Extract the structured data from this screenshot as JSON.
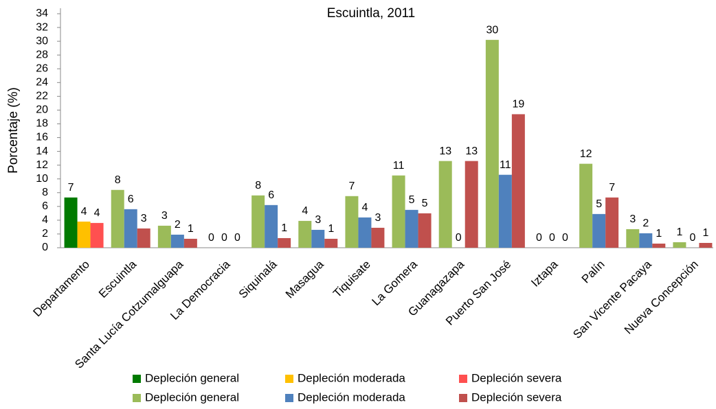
{
  "chart_data": {
    "type": "bar",
    "title": "Escuintla, 2011",
    "y_label": "Porcentaje (%)",
    "categories": [
      "Departamento",
      "Escuintla",
      "Santa Lucía Cotzumalguapa",
      "La Democracia",
      "Siquinalá",
      "Masagua",
      "Tiquisate",
      "La Gomera",
      "Guanagazapa",
      "Puerto San José",
      "Iztapa",
      "Palín",
      "San Vicente Pacaya",
      "Nueva Concepción"
    ],
    "series": [
      {
        "name": "Depleción general",
        "color": "#007a00",
        "values": [
          7.3,
          null,
          null,
          null,
          null,
          null,
          null,
          null,
          null,
          null,
          null,
          null,
          null,
          null
        ],
        "value_labels": [
          "7",
          null,
          null,
          null,
          null,
          null,
          null,
          null,
          null,
          null,
          null,
          null,
          null,
          null
        ]
      },
      {
        "name": "Depleción moderada",
        "color": "#ffc000",
        "values": [
          3.8,
          null,
          null,
          null,
          null,
          null,
          null,
          null,
          null,
          null,
          null,
          null,
          null,
          null
        ],
        "value_labels": [
          "4",
          null,
          null,
          null,
          null,
          null,
          null,
          null,
          null,
          null,
          null,
          null,
          null,
          null
        ]
      },
      {
        "name": "Depleción severa",
        "color": "#ff5050",
        "values": [
          3.6,
          null,
          null,
          null,
          null,
          null,
          null,
          null,
          null,
          null,
          null,
          null,
          null,
          null
        ],
        "value_labels": [
          "4",
          null,
          null,
          null,
          null,
          null,
          null,
          null,
          null,
          null,
          null,
          null,
          null,
          null
        ]
      },
      {
        "name": "Depleción general",
        "color": "#9bbb59",
        "values": [
          null,
          8.4,
          3.2,
          0,
          7.6,
          3.9,
          7.5,
          10.5,
          12.6,
          30.2,
          0,
          12.2,
          2.7,
          0.8
        ],
        "value_labels": [
          null,
          "8",
          "3",
          "0",
          "8",
          "4",
          "7",
          "11",
          "13",
          "30",
          "0",
          "12",
          "3",
          "1"
        ]
      },
      {
        "name": "Depleción moderada",
        "color": "#4f81bd",
        "values": [
          null,
          5.6,
          1.9,
          0,
          6.2,
          2.6,
          4.4,
          5.5,
          0,
          10.6,
          0,
          4.9,
          2.1,
          0
        ],
        "value_labels": [
          null,
          "6",
          "2",
          "0",
          "6",
          "3",
          "4",
          "5",
          "0",
          "11",
          "0",
          "5",
          "2",
          "0"
        ]
      },
      {
        "name": "Depleción severa",
        "color": "#c0504d",
        "values": [
          null,
          2.8,
          1.3,
          0,
          1.4,
          1.3,
          2.9,
          5.0,
          12.6,
          19.4,
          0,
          7.3,
          0.6,
          0.7
        ],
        "value_labels": [
          null,
          "3",
          "1",
          "0",
          "1",
          "1",
          "3",
          "5",
          "13",
          "19",
          "0",
          "7",
          "1",
          "1"
        ]
      }
    ],
    "ylim": [
      0,
      34
    ],
    "yticks": [
      0,
      2,
      4,
      6,
      8,
      10,
      12,
      14,
      16,
      18,
      20,
      22,
      24,
      26,
      28,
      30,
      32,
      34
    ],
    "grid": false,
    "legend": "bottom"
  }
}
